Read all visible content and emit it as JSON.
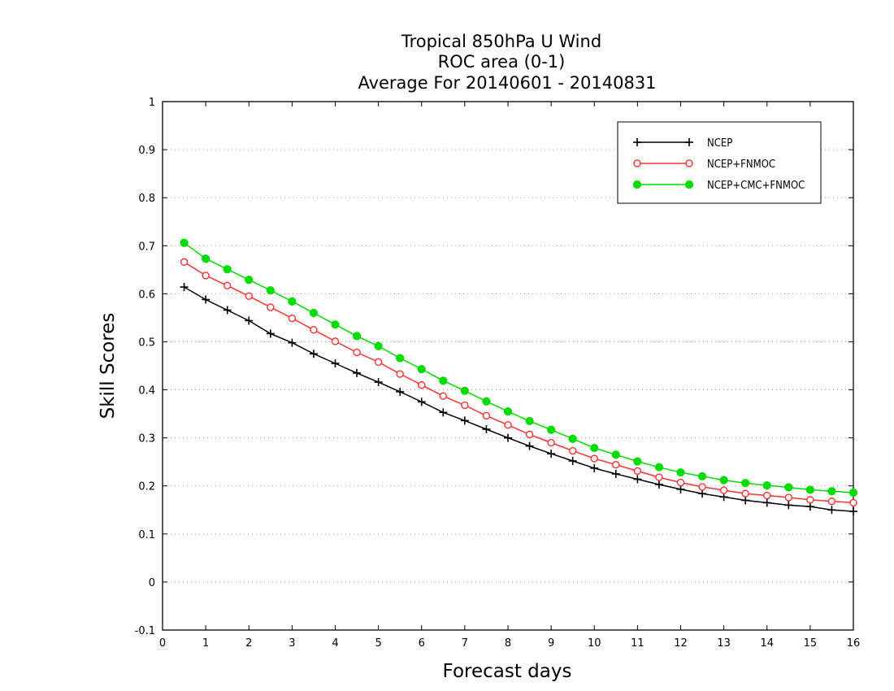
{
  "chart_data": {
    "type": "line",
    "title": [
      "Tropical 850hPa U Wind",
      "ROC area (0-1)",
      "Average For 20140601 - 20140831"
    ],
    "xlabel": "Forecast days",
    "ylabel": "Skill Scores",
    "xlim": [
      0,
      16
    ],
    "ylim": [
      -0.1,
      1
    ],
    "xticks": [
      0,
      1,
      2,
      3,
      4,
      5,
      6,
      7,
      8,
      9,
      10,
      11,
      12,
      13,
      14,
      15,
      16
    ],
    "yticks": [
      -0.1,
      0,
      0.1,
      0.2,
      0.3,
      0.4,
      0.5,
      0.6,
      0.7,
      0.8,
      0.9,
      1
    ],
    "ytick_labels": [
      "-0.1",
      "0",
      "0.1",
      "0.2",
      "0.3",
      "0.4",
      "0.5",
      "0.6",
      "0.7",
      "0.8",
      "0.9",
      "1"
    ],
    "grid": "horizontal dotted",
    "legend_position": "top-right",
    "x": [
      0.5,
      1,
      1.5,
      2,
      2.5,
      3,
      3.5,
      4,
      4.5,
      5,
      5.5,
      6,
      6.5,
      7,
      7.5,
      8,
      8.5,
      9,
      9.5,
      10,
      10.5,
      11,
      11.5,
      12,
      12.5,
      13,
      13.5,
      14,
      14.5,
      15,
      15.5,
      16
    ],
    "series": [
      {
        "name": "NCEP",
        "color": "#000000",
        "marker": "plus",
        "values": [
          0.614,
          0.588,
          0.566,
          0.544,
          0.517,
          0.498,
          0.475,
          0.455,
          0.435,
          0.416,
          0.396,
          0.375,
          0.353,
          0.336,
          0.318,
          0.3,
          0.283,
          0.267,
          0.252,
          0.237,
          0.225,
          0.214,
          0.203,
          0.193,
          0.184,
          0.177,
          0.17,
          0.165,
          0.16,
          0.157,
          0.15,
          0.147
        ]
      },
      {
        "name": "NCEP+FNMOC",
        "color": "#ff3030",
        "marker": "open-circle",
        "values": [
          0.666,
          0.638,
          0.617,
          0.595,
          0.572,
          0.549,
          0.525,
          0.501,
          0.478,
          0.458,
          0.433,
          0.41,
          0.387,
          0.368,
          0.346,
          0.327,
          0.307,
          0.29,
          0.273,
          0.257,
          0.244,
          0.231,
          0.218,
          0.207,
          0.198,
          0.191,
          0.184,
          0.18,
          0.176,
          0.171,
          0.168,
          0.165
        ]
      },
      {
        "name": "NCEP+CMC+FNMOC",
        "color": "#00dc00",
        "marker": "filled-circle",
        "values": [
          0.706,
          0.673,
          0.651,
          0.629,
          0.607,
          0.584,
          0.56,
          0.536,
          0.512,
          0.491,
          0.466,
          0.443,
          0.419,
          0.398,
          0.376,
          0.355,
          0.335,
          0.317,
          0.298,
          0.279,
          0.265,
          0.251,
          0.239,
          0.228,
          0.22,
          0.212,
          0.206,
          0.201,
          0.197,
          0.192,
          0.189,
          0.186
        ]
      }
    ]
  }
}
